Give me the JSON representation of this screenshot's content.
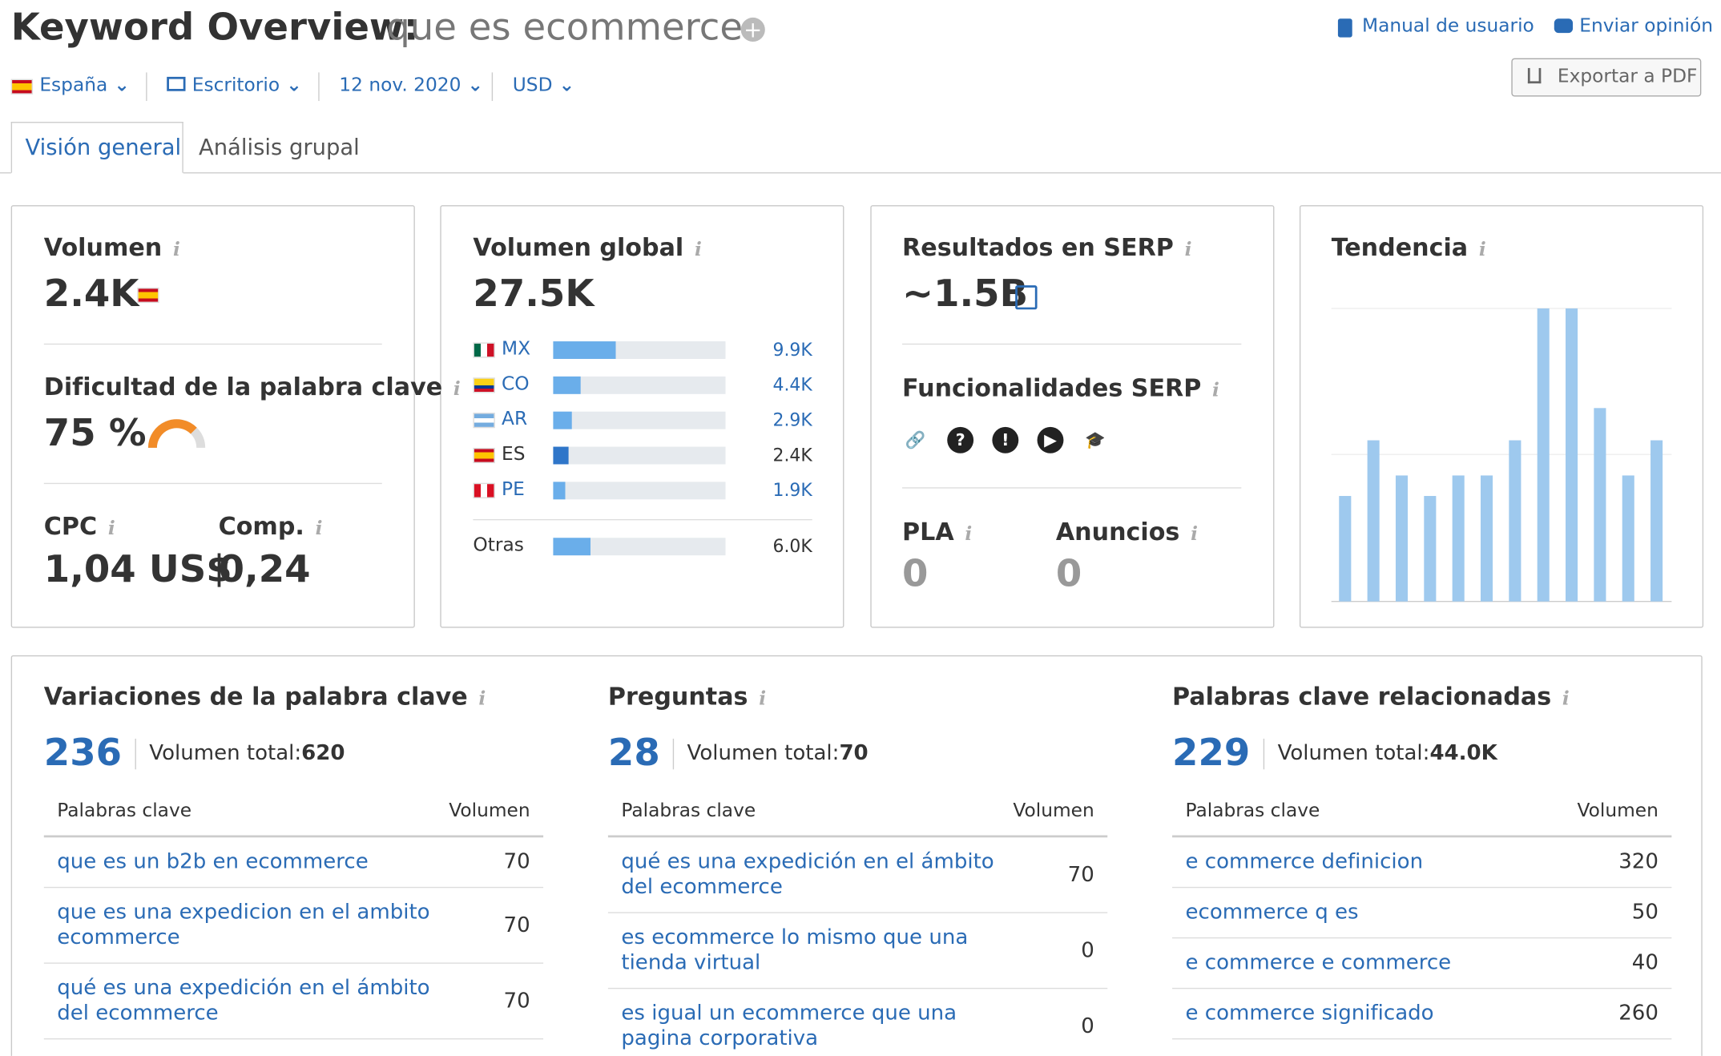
{
  "header": {
    "title": "Keyword Overview:",
    "keyword": "que es ecommerce",
    "links": [
      "Manual de usuario",
      "Enviar opinión"
    ],
    "filters": [
      "España",
      "Escritorio",
      "12 nov. 2020",
      "USD"
    ],
    "export": "Exportar a PDF"
  },
  "tabs": [
    "Visión general",
    "Análisis grupal"
  ],
  "volume": {
    "label": "Volumen",
    "value": "2.4K"
  },
  "difficulty": {
    "label": "Dificultad de la palabra clave",
    "value": 75,
    "value_label": "75 %"
  },
  "cpc": {
    "label": "CPC",
    "value": "1,04 US$"
  },
  "competition": {
    "label": "Comp.",
    "value": "0,24"
  },
  "global_volume": {
    "label": "Volumen global",
    "value": 27500,
    "value_label": "27.5K",
    "countries": [
      {
        "code": "MX",
        "value": 9900,
        "value_label": "9.9K"
      },
      {
        "code": "CO",
        "value": 4400,
        "value_label": "4.4K"
      },
      {
        "code": "AR",
        "value": 2900,
        "value_label": "2.9K"
      },
      {
        "code": "ES",
        "value": 2400,
        "value_label": "2.4K"
      },
      {
        "code": "PE",
        "value": 1900,
        "value_label": "1.9K"
      },
      {
        "code": "Otras",
        "value": 6000,
        "value_label": "6.0K"
      }
    ]
  },
  "serp": {
    "label": "Resultados en SERP",
    "value": "~1.5B",
    "features_label": "Funcionalidades SERP",
    "pla": {
      "label": "PLA",
      "value": "0"
    },
    "ads": {
      "label": "Anuncios",
      "value": "0"
    }
  },
  "trend": {
    "label": "Tendencia",
    "values": [
      36,
      55,
      43,
      36,
      43,
      43,
      55,
      100,
      100,
      66,
      43,
      55
    ]
  },
  "panels": [
    {
      "title": "Variaciones de la palabra clave",
      "count": 236,
      "total_label": "Volumen total:",
      "total": "620",
      "columns": [
        "Palabras clave",
        "Volumen"
      ],
      "rows": [
        [
          "que es un b2b en ecommerce",
          70
        ],
        [
          "que es una expedicion en el ambito ecommerce",
          70
        ],
        [
          "qué es una expedición en el ámbito del ecommerce",
          70
        ]
      ]
    },
    {
      "title": "Preguntas",
      "count": 28,
      "total_label": "Volumen total:",
      "total": "70",
      "columns": [
        "Palabras clave",
        "Volumen"
      ],
      "rows": [
        [
          "qué es una expedición en el ámbito del ecommerce",
          70
        ],
        [
          "es ecommerce lo mismo que una tienda virtual",
          0
        ],
        [
          "es igual un ecommerce que una pagina corporativa",
          0
        ]
      ]
    },
    {
      "title": "Palabras clave relacionadas",
      "count": 229,
      "total_label": "Volumen total:",
      "total": "44.0K",
      "columns": [
        "Palabras clave",
        "Volumen"
      ],
      "rows": [
        [
          "e commerce definicion",
          320
        ],
        [
          "ecommerce q es",
          50
        ],
        [
          "e commerce e commerce",
          40
        ],
        [
          "e commerce significado",
          260
        ]
      ]
    }
  ]
}
